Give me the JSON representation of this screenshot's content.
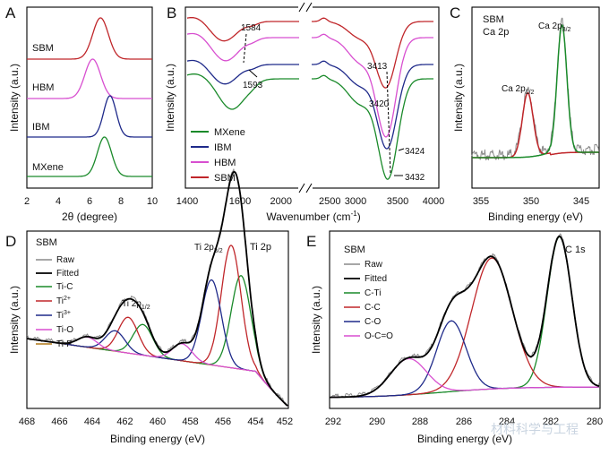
{
  "chart_data": [
    {
      "panel": "A",
      "type": "line",
      "xlabel": "2θ (degree)",
      "ylabel": "Intensity (a.u.)",
      "xlim": [
        2,
        10
      ],
      "xticks": [
        "2",
        "4",
        "6",
        "8",
        "10"
      ],
      "series": [
        {
          "name": "SBM",
          "color": "#c0262a",
          "peak_center": 6.7,
          "peak_width": 0.5
        },
        {
          "name": "HBM",
          "color": "#d84fd0",
          "peak_center": 6.2,
          "peak_width": 0.5
        },
        {
          "name": "IBM",
          "color": "#1f2a8a",
          "peak_center": 7.3,
          "peak_width": 0.4
        },
        {
          "name": "MXene",
          "color": "#1a8a2a",
          "peak_center": 6.95,
          "peak_width": 0.45
        }
      ]
    },
    {
      "panel": "B",
      "type": "line",
      "xlabel": "Wavenumber (cm⁻¹)",
      "xlabel_main": "Wavenumber (cm",
      "xlabel_sup": "-1",
      "xlabel_close": ")",
      "ylabel": "Intensity (a.u.)",
      "xlim": [
        1400,
        4000
      ],
      "axis_break": [
        2000,
        2500
      ],
      "xticks": [
        "1400",
        "1600",
        "2000",
        "2500",
        "3000",
        "3500",
        "4000"
      ],
      "annotations": [
        "1584",
        "1593",
        "3413",
        "3420",
        "3424",
        "3432"
      ],
      "series": [
        {
          "name": "MXene",
          "color": "#1a8a2a"
        },
        {
          "name": "IBM",
          "color": "#1f2a8a"
        },
        {
          "name": "HBM",
          "color": "#d84fd0"
        },
        {
          "name": "SBM",
          "color": "#c0262a"
        }
      ]
    },
    {
      "panel": "C",
      "type": "line",
      "title": "SBM",
      "subtitle": "Ca 2p",
      "xlabel": "Binding energy (eV)",
      "ylabel": "Intensity (a.u.)",
      "xlim": [
        357,
        344
      ],
      "xticks": [
        "355",
        "350",
        "345"
      ],
      "peak_labels": [
        {
          "main": "Ca 2p",
          "sub": "1/2",
          "position": 351.3
        },
        {
          "main": "Ca 2p",
          "sub": "3/2",
          "position": 347.8
        }
      ],
      "peaks": [
        {
          "name": "Ca 2p1/2",
          "center": 351.3,
          "height": 0.5,
          "color": "#c0262a"
        },
        {
          "name": "Ca 2p3/2",
          "center": 347.8,
          "height": 1.0,
          "color": "#1a8a2a"
        }
      ]
    },
    {
      "panel": "D",
      "type": "line",
      "title": "SBM",
      "region": "Ti 2p",
      "xlabel": "Binding energy (eV)",
      "ylabel": "Intensity (a.u.)",
      "xlim": [
        468,
        452
      ],
      "xticks": [
        "468",
        "466",
        "464",
        "462",
        "460",
        "458",
        "456",
        "454",
        "452"
      ],
      "peak_labels": [
        {
          "main": "Ti 2p",
          "sub": "1/2",
          "position": 461.5
        },
        {
          "main": "Ti 2p",
          "sub": "3/2",
          "position": 455.3
        }
      ],
      "legend": [
        {
          "label": "Raw",
          "sup": "",
          "color": "#8a8a8a"
        },
        {
          "label": "Fitted",
          "sup": "",
          "color": "#000000"
        },
        {
          "label": "Ti-C",
          "sup": "",
          "color": "#1a8a2a"
        },
        {
          "label": "Ti",
          "sup": "2+",
          "color": "#c0262a"
        },
        {
          "label": "Ti",
          "sup": "3+",
          "color": "#1f2a8a"
        },
        {
          "label": "Ti-O",
          "sup": "",
          "color": "#d84fd0"
        },
        {
          "label": "Ti-F",
          "sup": "",
          "color": "#b07818"
        }
      ],
      "components": [
        {
          "name": "Ti-C",
          "color": "#1a8a2a",
          "peaks": [
            [
              454.9,
              0.55
            ],
            [
              460.9,
              0.18
            ]
          ]
        },
        {
          "name": "Ti2+",
          "color": "#c0262a",
          "peaks": [
            [
              455.5,
              0.72
            ],
            [
              461.8,
              0.21
            ]
          ]
        },
        {
          "name": "Ti3+",
          "color": "#1f2a8a",
          "peaks": [
            [
              456.7,
              0.5
            ],
            [
              462.6,
              0.12
            ]
          ]
        },
        {
          "name": "Ti-O",
          "color": "#d84fd0",
          "peaks": [
            [
              458.5,
              0.1
            ],
            [
              464.3,
              0.06
            ]
          ]
        },
        {
          "name": "Ti-F",
          "color": "#b07818",
          "peaks": []
        }
      ]
    },
    {
      "panel": "E",
      "type": "line",
      "title": "SBM",
      "region": "C 1s",
      "xlabel": "Binding energy (eV)",
      "ylabel": "Intensity (a.u.)",
      "xlim": [
        292,
        280
      ],
      "xticks": [
        "292",
        "290",
        "288",
        "286",
        "284",
        "282",
        "280"
      ],
      "legend": [
        {
          "label": "Raw",
          "color": "#8a8a8a"
        },
        {
          "label": "Fitted",
          "color": "#000000"
        },
        {
          "label": "C-Ti",
          "color": "#1a8a2a"
        },
        {
          "label": "C-C",
          "color": "#c0262a"
        },
        {
          "label": "C-O",
          "color": "#1f2a8a"
        },
        {
          "label": "O-C=O",
          "color": "#d84fd0"
        }
      ],
      "components": [
        {
          "name": "C-Ti",
          "color": "#1a8a2a",
          "center": 281.8,
          "height": 1.0
        },
        {
          "name": "C-C",
          "color": "#c0262a",
          "center": 284.8,
          "height": 0.87
        },
        {
          "name": "C-O",
          "color": "#1f2a8a",
          "center": 286.6,
          "height": 0.47
        },
        {
          "name": "O-C=O",
          "color": "#d84fd0",
          "center": 288.5,
          "height": 0.24
        }
      ]
    }
  ],
  "watermark": "材料科学与工程"
}
